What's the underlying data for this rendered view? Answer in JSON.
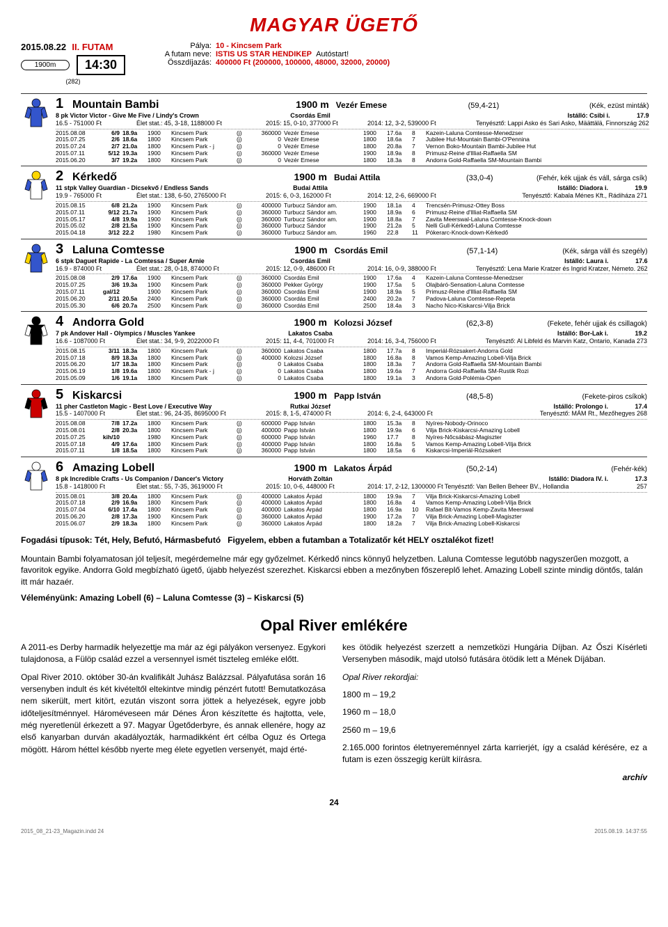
{
  "logo": "MAGYAR ÜGETŐ",
  "date": "2015.08.22",
  "futam": "II. FUTAM",
  "time": "14:30",
  "distance": "1900m",
  "dist_sub": "(282)",
  "track_label": "Pálya:",
  "track": "10 - Kincsem Park",
  "race_name_label": "A futam neve:",
  "race_name": "ISTIS US STAR HENDIKEP",
  "autostart": "Autóstart!",
  "prize_label": "Összdíjazás:",
  "prize": "400000 Ft (200000, 100000, 48000, 32000, 20000)",
  "horses": [
    {
      "num": "1",
      "name": "Mountain Bambi",
      "dist": "1900 m",
      "jockey_top": "Vezér Emese",
      "odds": "(59,4-21)",
      "color_desc": "(Kék, ezüst minták)",
      "line2a": "8 pk Victor Victor - Give Me Five / Lindy's Crown",
      "line2b": "Csordás Emil",
      "line2c": "Istálló: Csibi i.",
      "line2d": "17.9",
      "line3a": "16.5 - 751000 Ft",
      "line3b": "Élet stat.: 45, 3-18, 1188000 Ft",
      "line3c": "2015: 15, 0-10, 377000 Ft",
      "line3d": "2014: 12, 3-2, 539000 Ft",
      "line3e": "Tenyésztő: Lappi Asko és Sari Asko, Määttälä, Finnország 262",
      "silk": {
        "body": "#3355cc",
        "sleeves": "#3355cc",
        "cap": "#3355cc"
      },
      "form": [
        [
          "2015.08.08",
          "6/9",
          "18.9a",
          "1900",
          "Kincsem Park",
          "(j)",
          "360000",
          "Vezér Emese",
          "1900",
          "17.6a",
          "8",
          "Kazein-Laluna Comtesse-Menedzser"
        ],
        [
          "2015.07.25",
          "2/6",
          "18.6a",
          "1800",
          "Kincsem Park",
          "(j)",
          "0",
          "Vezér Emese",
          "1800",
          "18.6a",
          "7",
          "Jubilee Hut-Mountain Bambi-O'Pennina"
        ],
        [
          "2015.07.24",
          "2/7",
          "21.0a",
          "1800",
          "Kincsem Park - j",
          "(j)",
          "0",
          "Vezér Emese",
          "1800",
          "20.8a",
          "7",
          "Vernon Boko-Mountain Bambi-Jubilee Hut"
        ],
        [
          "2015.07.11",
          "5/12",
          "19.3a",
          "1900",
          "Kincsem Park",
          "(j)",
          "360000",
          "Vezér Emese",
          "1900",
          "18.9a",
          "8",
          "Primusz-Reine d'Illiat-Raffaella SM"
        ],
        [
          "2015.06.20",
          "3/7",
          "19.2a",
          "1800",
          "Kincsem Park",
          "(j)",
          "0",
          "Vezér Emese",
          "1800",
          "18.3a",
          "8",
          "Andorra Gold-Raffaella SM-Mountain Bambi"
        ]
      ]
    },
    {
      "num": "2",
      "name": "Kérkedő",
      "dist": "1900 m",
      "jockey_top": "Budai Attila",
      "odds": "(33,0-4)",
      "color_desc": "(Fehér, kék ujjak és váll, sárga csík)",
      "line2a": "11 stpk Valley Guardian - Dicsekvő / Endless Sands",
      "line2b": "Budai Attila",
      "line2c": "Istálló: Diadora i.",
      "line2d": "19.9",
      "line3a": "19.9 - 765000 Ft",
      "line3b": "Élet stat.: 138, 6-50, 2765000 Ft",
      "line3c": "2015: 6, 0-3, 162000 Ft",
      "line3d": "2014: 12, 2-6, 669000 Ft",
      "line3e": "Tenyésztő: Kabala Ménes Kft., Rádiháza                271",
      "silk": {
        "body": "#fff",
        "sleeves": "#3355cc",
        "cap": "#ffd700"
      },
      "form": [
        [
          "2015.08.15",
          "6/8",
          "21.2a",
          "1900",
          "Kincsem Park",
          "(j)",
          "400000",
          "Turbucz Sándor am.",
          "1900",
          "18.1a",
          "4",
          "Trencsén-Primusz-Ottey Boss"
        ],
        [
          "2015.07.11",
          "9/12",
          "21.7a",
          "1900",
          "Kincsem Park",
          "(j)",
          "360000",
          "Turbucz Sándor am.",
          "1900",
          "18.9a",
          "6",
          "Primusz-Reine d'Illiat-Raffaella SM"
        ],
        [
          "2015.05.17",
          "4/8",
          "19.9a",
          "1900",
          "Kincsem Park",
          "(j)",
          "360000",
          "Turbucz Sándor am.",
          "1900",
          "18.8a",
          "7",
          "Zavita Meerswal-Laluna Comtesse-Knock-down"
        ],
        [
          "2015.05.02",
          "2/8",
          "21.5a",
          "1900",
          "Kincsem Park",
          "(j)",
          "360000",
          "Turbucz Sándor",
          "1900",
          "21.2a",
          "5",
          "Nelli Gull-Kérkedő-Laluna Comtesse"
        ],
        [
          "2015.04.18",
          "3/12",
          "22.2",
          "1980",
          "Kincsem Park",
          "(j)",
          "360000",
          "Turbucz Sándor am.",
          "1960",
          "22.8",
          "11",
          "Pókerarc-Knock-down-Kérkedő"
        ]
      ]
    },
    {
      "num": "3",
      "name": "Laluna Comtesse",
      "dist": "1900 m",
      "jockey_top": "Csordás Emil",
      "odds": "(57,1-14)",
      "color_desc": "(Kék, sárga váll és szegély)",
      "line2a": "6 stpk Daguet Rapide - La Comtessa / Super Arnie",
      "line2b": "Csordás Emil",
      "line2c": "Istálló: Laura i.",
      "line2d": "17.6",
      "line3a": "16.9 - 874000 Ft",
      "line3b": "Élet stat.: 28, 0-18, 874000 Ft",
      "line3c": "2015: 12, 0-9, 486000 Ft",
      "line3d": "2014: 16, 0-9, 388000 Ft",
      "line3e": "Tenyésztő: Lena Marie Kratzer és Ingrid Kratzer, Németo. 262",
      "silk": {
        "body": "#3355cc",
        "sleeves": "#ffd700",
        "cap": "#3355cc"
      },
      "form": [
        [
          "2015.08.08",
          "2/9",
          "17.6a",
          "1900",
          "Kincsem Park",
          "(j)",
          "360000",
          "Csordás Emil",
          "1900",
          "17.6a",
          "4",
          "Kazein-Laluna Comtesse-Menedzser"
        ],
        [
          "2015.07.25",
          "3/6",
          "19.3a",
          "1900",
          "Kincsem Park",
          "(j)",
          "360000",
          "Pekker György",
          "1900",
          "17.5a",
          "5",
          "Olajbáró-Sensation-Laluna Comtesse"
        ],
        [
          "2015.07.11",
          "gal/12",
          "",
          "1900",
          "Kincsem Park",
          "(j)",
          "360000",
          "Csordás Emil",
          "1900",
          "18.9a",
          "5",
          "Primusz-Reine d'Illiat-Raffaella SM"
        ],
        [
          "2015.06.20",
          "2/11",
          "20.5a",
          "2400",
          "Kincsem Park",
          "(j)",
          "360000",
          "Csordás Emil",
          "2400",
          "20.2a",
          "7",
          "Padova-Laluna Comtesse-Repeta"
        ],
        [
          "2015.05.30",
          "6/6",
          "20.7a",
          "2500",
          "Kincsem Park",
          "(j)",
          "360000",
          "Csordás Emil",
          "2500",
          "18.4a",
          "3",
          "Nacho Nico-Kiskarcsi-Vilja Brick"
        ]
      ]
    },
    {
      "num": "4",
      "name": "Andorra Gold",
      "dist": "1900 m",
      "jockey_top": "Kolozsi József",
      "odds": "(62,3-8)",
      "color_desc": "(Fekete, fehér ujjak és csillagok)",
      "line2a": "7 pk Andover Hall - Olympics / Muscles Yankee",
      "line2b": "Lakatos Csaba",
      "line2c": "Istálló: Bor-Lak i.",
      "line2d": "19.2",
      "line3a": "16.6 - 1087000 Ft",
      "line3b": "Élet stat.: 34, 9-9, 2022000 Ft",
      "line3c": "2015: 11, 4-4, 701000 Ft",
      "line3d": "2014: 16, 3-4, 756000 Ft",
      "line3e": "Tenyésztő: Al Libfeld és Marvin Katz, Ontario, Kanada   273",
      "silk": {
        "body": "#000",
        "sleeves": "#fff",
        "cap": "#000"
      },
      "form": [
        [
          "2015.08.15",
          "3/11",
          "18.3a",
          "1800",
          "Kincsem Park",
          "(j)",
          "360000",
          "Lakatos Csaba",
          "1800",
          "17.7a",
          "8",
          "Imperiál-Rózsakert-Andorra Gold"
        ],
        [
          "2015.07.18",
          "8/9",
          "18.3a",
          "1800",
          "Kincsem Park",
          "(j)",
          "400000",
          "Kolozsi József",
          "1800",
          "16.8a",
          "8",
          "Vamos Kemp-Amazing Lobell-Vilja Brick"
        ],
        [
          "2015.06.20",
          "1/7",
          "18.3a",
          "1800",
          "Kincsem Park",
          "(j)",
          "0",
          "Lakatos Csaba",
          "1800",
          "18.3a",
          "7",
          "Andorra Gold-Raffaella SM-Mountain Bambi"
        ],
        [
          "2015.06.19",
          "1/8",
          "19.6a",
          "1800",
          "Kincsem Park - j",
          "(j)",
          "0",
          "Lakatos Csaba",
          "1800",
          "19.6a",
          "7",
          "Andorra Gold-Raffaella SM-Rustik Rozi"
        ],
        [
          "2015.05.09",
          "1/6",
          "19.1a",
          "1800",
          "Kincsem Park",
          "(j)",
          "0",
          "Lakatos Csaba",
          "1800",
          "19.1a",
          "3",
          "Andorra Gold-Polémia-Open"
        ]
      ]
    },
    {
      "num": "5",
      "name": "Kiskarcsi",
      "dist": "1900 m",
      "jockey_top": "Papp István",
      "odds": "(48,5-8)",
      "color_desc": "(Fekete-piros csíkok)",
      "line2a": "11 pher Castleton Magic - Best Love / Executive Way",
      "line2b": "Rutkai József",
      "line2c": "Istálló: Prolongo i.",
      "line2d": "17.4",
      "line3a": "15.5 - 1407000 Ft",
      "line3b": "Élet stat.: 96, 24-35, 8695000 Ft",
      "line3c": "2015: 8, 1-5, 474000 Ft",
      "line3d": "2014: 6, 2-4, 643000 Ft",
      "line3e": "Tenyésztő: MÁM Rt., Mezőhegyes                268",
      "silk": {
        "body": "#c00",
        "sleeves": "#000",
        "cap": "#c00"
      },
      "form": [
        [
          "2015.08.08",
          "7/8",
          "17.2a",
          "1800",
          "Kincsem Park",
          "(j)",
          "600000",
          "Papp István",
          "1800",
          "15.3a",
          "8",
          "Nyíres-Nobody-Orinoco"
        ],
        [
          "2015.08.01",
          "2/8",
          "20.3a",
          "1800",
          "Kincsem Park",
          "(j)",
          "400000",
          "Papp István",
          "1800",
          "19.9a",
          "6",
          "Vilja Brick-Kiskarcsi-Amazing Lobell"
        ],
        [
          "2015.07.25",
          "kih/10",
          "",
          "1980",
          "Kincsem Park",
          "(j)",
          "600000",
          "Papp István",
          "1960",
          "17.7",
          "8",
          "Nyíres-Nőcsábász-Magiszter"
        ],
        [
          "2015.07.18",
          "4/9",
          "17.6a",
          "1800",
          "Kincsem Park",
          "(j)",
          "400000",
          "Papp István",
          "1800",
          "16.8a",
          "5",
          "Vamos Kemp-Amazing Lobell-Vilja Brick"
        ],
        [
          "2015.07.11",
          "1/8",
          "18.5a",
          "1800",
          "Kincsem Park",
          "(j)",
          "360000",
          "Papp István",
          "1800",
          "18.5a",
          "6",
          "Kiskarcsi-Imperiál-Rózsakert"
        ]
      ]
    },
    {
      "num": "6",
      "name": "Amazing Lobell",
      "dist": "1900 m",
      "jockey_top": "Lakatos Árpád",
      "odds": "(50,2-14)",
      "color_desc": "(Fehér-kék)",
      "line2a": "8 pk Incredible Crafts - Us Companion / Dancer's Victory",
      "line2b": "Horváth Zoltán",
      "line2c": "Istálló: Diadora IV. i.",
      "line2d": "17.3",
      "line3a": "15.8 - 1418000 Ft",
      "line3b": "Élet stat.: 55, 7-35, 3619000 Ft",
      "line3c": "2015: 10, 0-6, 448000 Ft",
      "line3d": "2014: 17, 2-12, 1300000 Ft Tenyésztő: Van Bellen Beheer BV., Hollandia",
      "line3e": "257",
      "silk": {
        "body": "#fff",
        "sleeves": "#3355cc",
        "cap": "#fff"
      },
      "form": [
        [
          "2015.08.01",
          "3/8",
          "20.4a",
          "1800",
          "Kincsem Park",
          "(j)",
          "400000",
          "Lakatos Árpád",
          "1800",
          "19.9a",
          "7",
          "Vilja Brick-Kiskarcsi-Amazing Lobell"
        ],
        [
          "2015.07.18",
          "2/9",
          "16.9a",
          "1800",
          "Kincsem Park",
          "(j)",
          "400000",
          "Lakatos Árpád",
          "1800",
          "16.8a",
          "4",
          "Vamos Kemp-Amazing Lobell-Vilja Brick"
        ],
        [
          "2015.07.04",
          "6/10",
          "17.4a",
          "1800",
          "Kincsem Park",
          "(j)",
          "400000",
          "Lakatos Árpád",
          "1800",
          "16.9a",
          "10",
          "Rafael Bit-Vamos Kemp-Zavita Meerswal"
        ],
        [
          "2015.06.20",
          "2/8",
          "17.3a",
          "1900",
          "Kincsem Park",
          "(j)",
          "360000",
          "Lakatos Árpád",
          "1900",
          "17.2a",
          "7",
          "Vilja Brick-Amazing Lobell-Magiszter"
        ],
        [
          "2015.06.07",
          "2/9",
          "18.3a",
          "1800",
          "Kincsem Park",
          "(j)",
          "360000",
          "Lakatos Árpád",
          "1800",
          "18.2a",
          "7",
          "Vilja Brick-Amazing Lobell-Kiskarcsi"
        ]
      ]
    }
  ],
  "bet_types_label": "Fogadási típusok: Tét, Hely, Befutó, Hármasbefutó",
  "bet_types_warn": "Figyelem, ebben a futamban a Totalizatőr két HELY osztalékot fizet!",
  "note1": "Mountain Bambi folyamatosan jól teljesít, megérdemelne már egy győzelmet. Kérkedő nincs könnyű helyzetben. Laluna Comtesse legutóbb nagyszerűen mozgott, a favoritok egyike. Andorra Gold megbízható ügető, újabb helyezést szerezhet. Kiskarcsi ebben a mezőnyben főszereplő lehet. Amazing Lobell szinte mindig döntős, talán itt már hazaér.",
  "opinion": "Véleményünk: Amazing Lobell (6) – Laluna Comtesse (3) – Kiskarcsi (5)",
  "subhead": "Opal River emlékére",
  "art_p1": "A 2011-es Derby harmadik helyezettje ma már az égi pályákon versenyez. Egykori tulajdonosa, a Fülöp család ezzel a versennyel ismét tiszteleg emléke előtt.",
  "art_p2": "Opal River 2010. október 30-án kvalifikált Juhász Balázzsal. Pályafutása során 16 versenyben indult és két kivételtől eltekintve mindig pénzért futott! Bemutatkozása nem sikerült, mert kitört, ezután viszont sorra jöttek a helyezések, egyre jobb időteljesítménnyel. Hároméveseen már Dénes Áron készítette és hajtotta, vele, még nyeretlenül érkezett a 97. Magyar Ügetőderbyre, és annak ellenére, hogy az első kanyarban durván akadályozták, harmadikként ért célba Oguz és Ortega mögött. Három héttel később nyerte meg élete egyetlen versenyét, majd érté-",
  "art_p3": "kes ötödik helyezést szerzett a nemzetközi Hungária Díjban. Az Őszi Kísérleti Versenyben második, majd utolsó futására ötödik lett a Mének Díjában.",
  "records_label": "Opal River rekordjai:",
  "rec1": "1800 m – 19,2",
  "rec2": "1960 m – 18,0",
  "rec3": "2560 m – 19,6",
  "art_p4": "2.165.000 forintos életnyereménnyel zárta karrierjét, így a család kérésére, ez a futam is ezen összegig került kiírásra.",
  "archive": "archív",
  "page_num": "24",
  "footer_left": "2015_08_21-23_Magazin.indd 24",
  "footer_right": "2015.08.19.  14:37:55"
}
